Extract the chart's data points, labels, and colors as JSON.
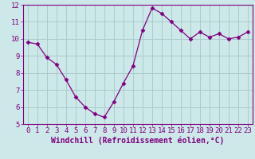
{
  "x": [
    0,
    1,
    2,
    3,
    4,
    5,
    6,
    7,
    8,
    9,
    10,
    11,
    12,
    13,
    14,
    15,
    16,
    17,
    18,
    19,
    20,
    21,
    22,
    23
  ],
  "y": [
    9.8,
    9.7,
    8.9,
    8.5,
    7.6,
    6.6,
    6.0,
    5.6,
    5.4,
    6.3,
    7.4,
    8.4,
    10.5,
    11.8,
    11.5,
    11.0,
    10.5,
    10.0,
    10.4,
    10.1,
    10.3,
    10.0,
    10.1,
    10.4
  ],
  "line_color": "#800080",
  "marker": "D",
  "marker_size": 2.5,
  "bg_color": "#cce8e8",
  "grid_color": "#aacccc",
  "axis_color": "#800080",
  "tick_color": "#800080",
  "xlabel": "Windchill (Refroidissement éolien,°C)",
  "ylim": [
    5,
    12
  ],
  "xlim_min": -0.5,
  "xlim_max": 23.5,
  "yticks": [
    5,
    6,
    7,
    8,
    9,
    10,
    11,
    12
  ],
  "xticks": [
    0,
    1,
    2,
    3,
    4,
    5,
    6,
    7,
    8,
    9,
    10,
    11,
    12,
    13,
    14,
    15,
    16,
    17,
    18,
    19,
    20,
    21,
    22,
    23
  ],
  "font_size": 6.5,
  "xlabel_fontsize": 7.0,
  "lw": 0.9
}
